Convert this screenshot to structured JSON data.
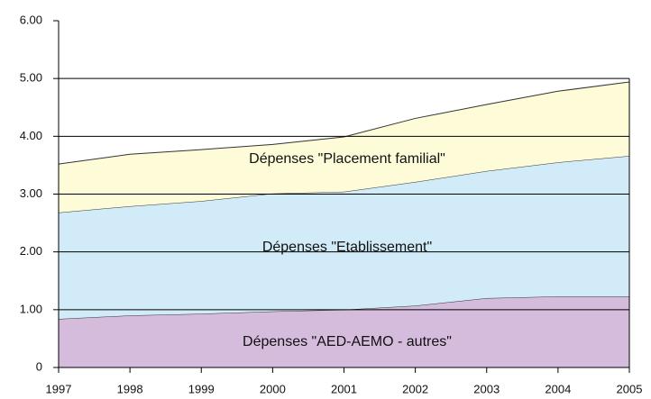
{
  "chart_data": {
    "type": "area",
    "stacked": true,
    "x": [
      1997,
      1998,
      1999,
      2000,
      2001,
      2002,
      2003,
      2004,
      2005
    ],
    "xlim": [
      1997,
      2005
    ],
    "xticks": [
      1997,
      1998,
      1999,
      2000,
      2001,
      2002,
      2003,
      2004,
      2005
    ],
    "ylim": [
      0,
      6
    ],
    "yticks": [
      0,
      {
        "value": 1,
        "label": "1.00"
      },
      {
        "value": 2,
        "label": "2.00"
      },
      {
        "value": 3,
        "label": "3.00"
      },
      {
        "value": 4,
        "label": "4.00"
      },
      {
        "value": 5,
        "label": "5.00"
      },
      {
        "value": 6,
        "label": "6.00"
      }
    ],
    "grid": true,
    "series": [
      {
        "name": "Dépenses \"AED-AEMO - autres\"",
        "color": "#d5bbdc",
        "values": [
          0.84,
          0.9,
          0.93,
          0.97,
          1.0,
          1.07,
          1.2,
          1.23,
          1.23
        ]
      },
      {
        "name": "Dépenses \"Etablissement\"",
        "color": "#d1ebf8",
        "values": [
          1.84,
          1.89,
          1.95,
          2.04,
          2.04,
          2.14,
          2.2,
          2.32,
          2.43
        ]
      },
      {
        "name": "Dépenses \"Placement familial\"",
        "color": "#fdfbd8",
        "values": [
          0.84,
          0.9,
          0.89,
          0.85,
          0.95,
          1.1,
          1.15,
          1.23,
          1.28
        ]
      }
    ]
  }
}
